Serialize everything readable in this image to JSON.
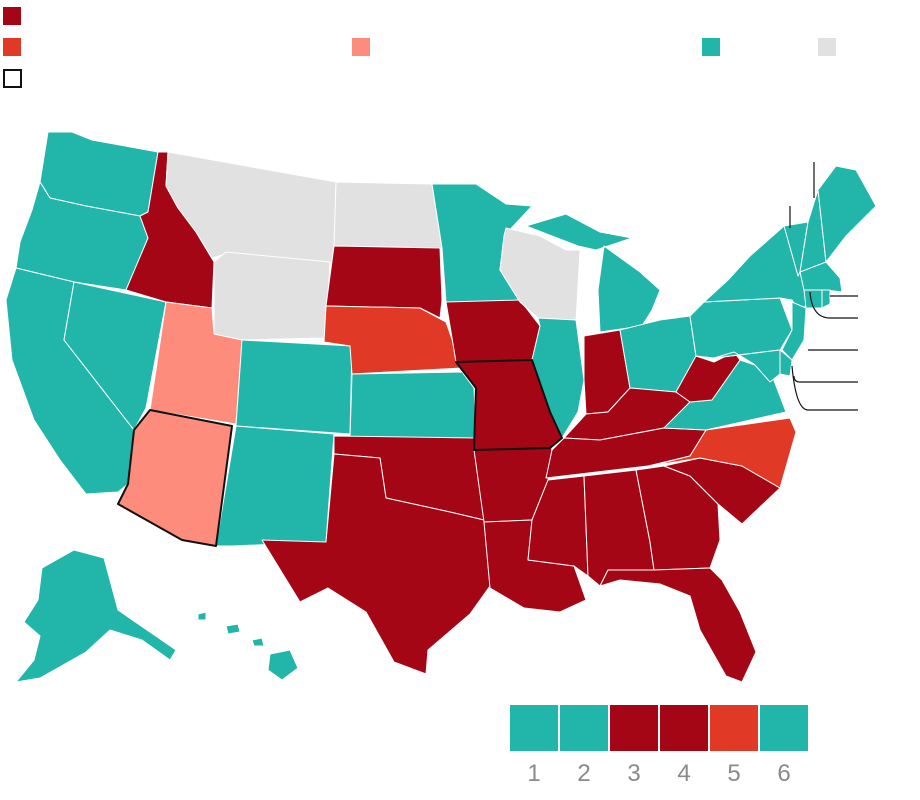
{
  "colors": {
    "dark_red": "#a50615",
    "red_orange": "#e03a26",
    "salmon": "#fd8c7c",
    "teal": "#22b5aa",
    "gray": "#e1e1e1",
    "outline": "#111111"
  },
  "legend": {
    "items": [
      {
        "key": "dark-red",
        "color": "#a50615",
        "label": ""
      },
      {
        "key": "red-orange",
        "color": "#e03a26",
        "label": ""
      },
      {
        "key": "salmon",
        "color": "#fd8c7c",
        "label": ""
      },
      {
        "key": "teal",
        "color": "#22b5aa",
        "label": ""
      },
      {
        "key": "gray",
        "color": "#e1e1e1",
        "label": ""
      },
      {
        "key": "outlined",
        "color": "#ffffff",
        "label": ""
      }
    ]
  },
  "states": {
    "WA": "teal",
    "OR": "teal",
    "CA": "teal",
    "NV": "teal",
    "ID": "dark_red",
    "MT": "gray",
    "WY": "gray",
    "UT": "salmon",
    "AZ": "salmon",
    "CO": "teal",
    "NM": "teal",
    "ND": "gray",
    "SD": "dark_red",
    "NE": "red_orange",
    "KS": "teal",
    "OK": "dark_red",
    "TX": "dark_red",
    "MN": "teal",
    "IA": "dark_red",
    "MO": "dark_red",
    "AR": "dark_red",
    "LA": "dark_red",
    "WI": "gray",
    "IL": "teal",
    "MI": "teal",
    "IN": "dark_red",
    "OH": "teal",
    "KY": "dark_red",
    "TN": "dark_red",
    "MS": "dark_red",
    "AL": "dark_red",
    "GA": "dark_red",
    "FL": "dark_red",
    "SC": "dark_red",
    "NC": "red_orange",
    "VA": "teal",
    "WV": "dark_red",
    "PA": "teal",
    "NY": "teal",
    "NJ": "teal",
    "DE": "teal",
    "MD": "teal",
    "ME": "teal",
    "NH": "teal",
    "VT": "teal",
    "MA": "teal",
    "CT": "teal",
    "RI": "teal",
    "AK": "teal",
    "HI": "teal"
  },
  "outlined_states": [
    "AZ",
    "MO"
  ],
  "scale": {
    "tiles": [
      {
        "label": "1",
        "color": "#22b5aa"
      },
      {
        "label": "2",
        "color": "#22b5aa"
      },
      {
        "label": "3",
        "color": "#a50615"
      },
      {
        "label": "4",
        "color": "#a50615"
      },
      {
        "label": "5",
        "color": "#e03a26"
      },
      {
        "label": "6",
        "color": "#22b5aa"
      }
    ]
  }
}
